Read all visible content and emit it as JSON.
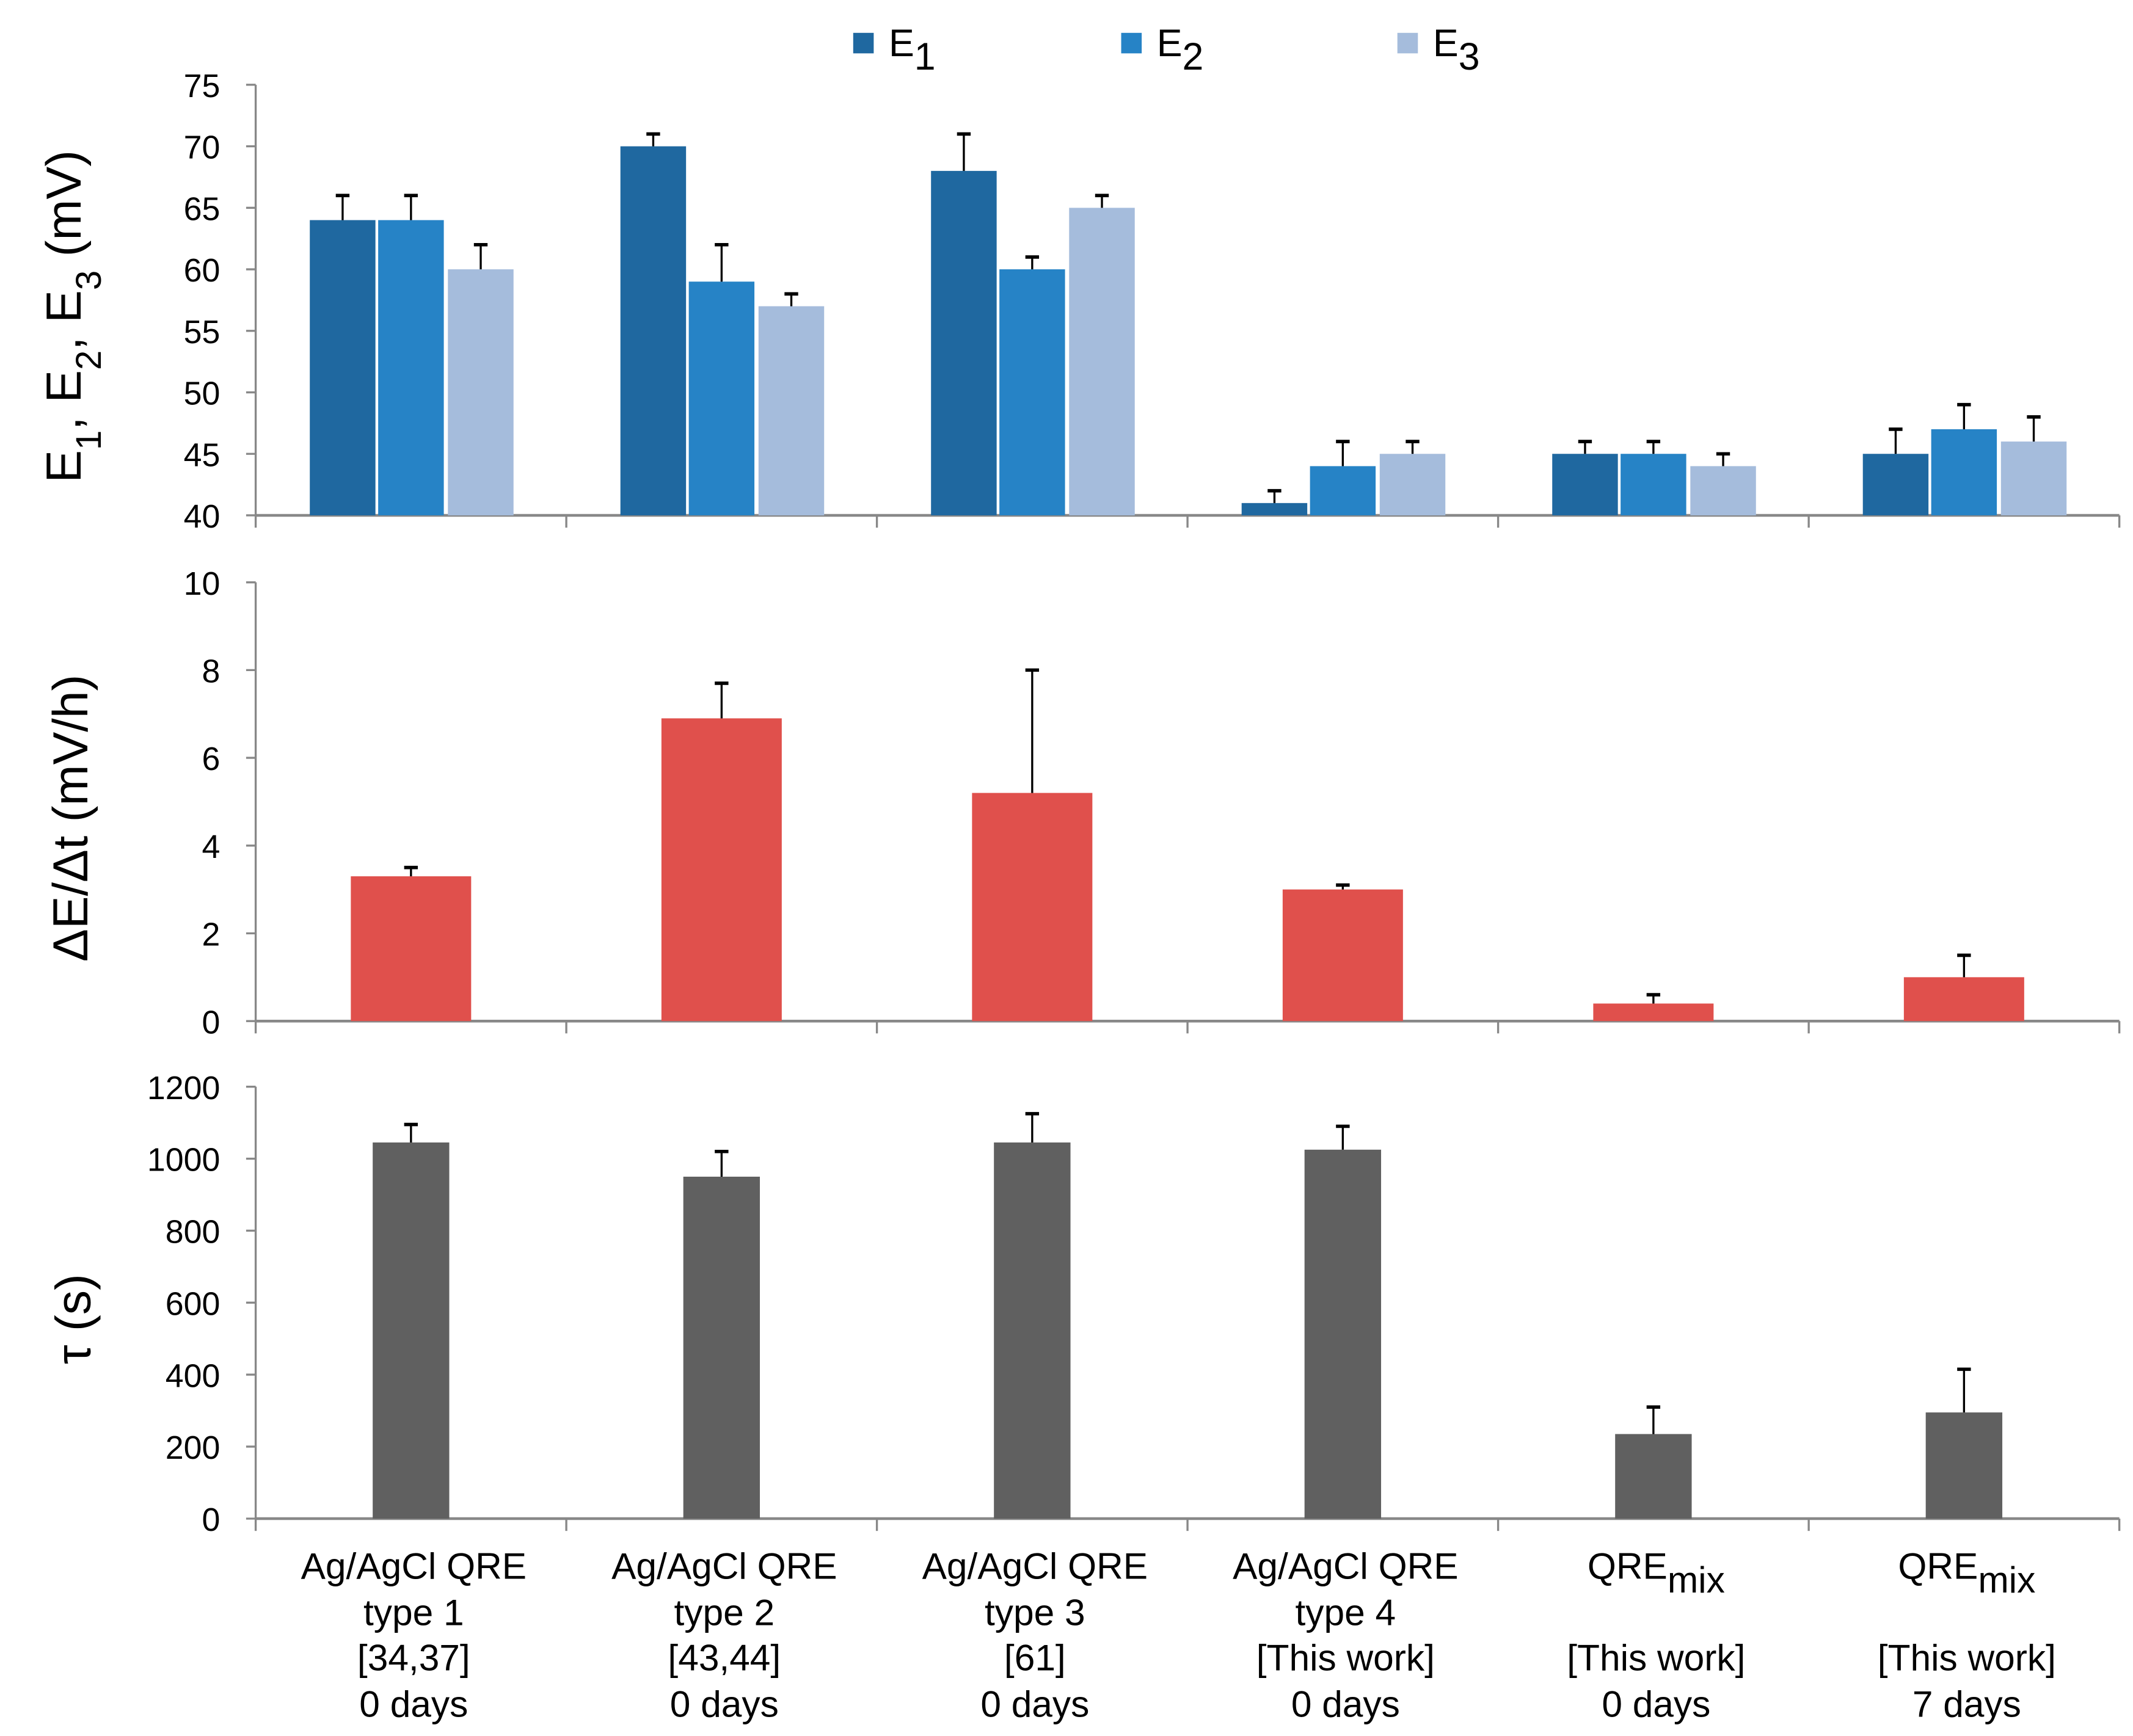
{
  "chart_data": [
    {
      "type": "bar",
      "ylabel": "E1, E2, E3 (mV)",
      "ylabel_parts": [
        "E",
        "1",
        ", E",
        "2",
        ", E",
        "3",
        "  (mV)"
      ],
      "ylim": [
        40,
        75
      ],
      "yticks": [
        40,
        45,
        50,
        55,
        60,
        65,
        70,
        75
      ],
      "legend_position": "top-center",
      "series": [
        {
          "name": "E1",
          "base": "E",
          "sub": "1",
          "color": "#1f68a0",
          "values": [
            64,
            70,
            68,
            41,
            45,
            45
          ],
          "errors": [
            2,
            1,
            3,
            1,
            1,
            2
          ]
        },
        {
          "name": "E2",
          "base": "E",
          "sub": "2",
          "color": "#2683c6",
          "values": [
            64,
            59,
            60,
            44,
            45,
            47
          ],
          "errors": [
            2,
            3,
            1,
            2,
            1,
            2
          ]
        },
        {
          "name": "E3",
          "base": "E",
          "sub": "3",
          "color": "#a5bcdc",
          "values": [
            60,
            57,
            65,
            45,
            44,
            46
          ],
          "errors": [
            2,
            1,
            1,
            1,
            1,
            2
          ]
        }
      ]
    },
    {
      "type": "bar",
      "ylabel": "ΔE/Δt  (mV/h)",
      "ylim": [
        0,
        10
      ],
      "yticks": [
        0,
        2,
        4,
        6,
        8,
        10
      ],
      "color": "#e0504c",
      "values": [
        3.3,
        6.9,
        5.2,
        3.0,
        0.4,
        1.0
      ],
      "errors": [
        0.2,
        0.8,
        2.8,
        0.1,
        0.2,
        0.5
      ]
    },
    {
      "type": "bar",
      "ylabel": "τ (s)",
      "ylim": [
        0,
        1200
      ],
      "yticks": [
        0,
        200,
        400,
        600,
        800,
        1000,
        1200
      ],
      "color": "#606060",
      "values": [
        1045,
        950,
        1045,
        1025,
        235,
        295
      ],
      "errors": [
        50,
        70,
        80,
        65,
        75,
        120
      ]
    }
  ],
  "categories": [
    {
      "lines": [
        "Ag/AgCl QRE",
        "type 1",
        "[34,37]",
        "0 days"
      ]
    },
    {
      "lines": [
        "Ag/AgCl QRE",
        "type 2",
        "[43,44]",
        "0 days"
      ]
    },
    {
      "lines": [
        "Ag/AgCl QRE",
        "type 3",
        "[61]",
        "0 days"
      ]
    },
    {
      "lines": [
        "Ag/AgCl QRE",
        "type 4",
        "[This work]",
        "0 days"
      ]
    },
    {
      "lines": [
        "QRE",
        "",
        "[This work]",
        "0 days"
      ],
      "sub": "mix"
    },
    {
      "lines": [
        "QRE",
        "",
        "[This work]",
        "7 days"
      ],
      "sub": "mix"
    }
  ]
}
